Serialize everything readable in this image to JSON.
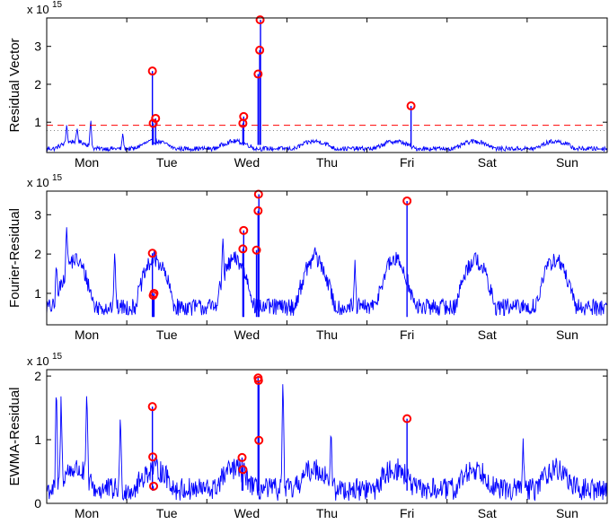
{
  "chart_data": [
    {
      "type": "line",
      "ylabel": "Residual Vector",
      "exponent_base": "x 10",
      "exponent_power": "15",
      "x_tick_labels": [
        "Mon",
        "Tue",
        "Wed",
        "Thu",
        "Fri",
        "Sat",
        "Sun"
      ],
      "x_range_days": [
        0,
        7
      ],
      "ylim": [
        0.2,
        3.75
      ],
      "y_ticks": [
        1,
        2,
        3
      ],
      "threshold": 0.92,
      "threshold_style": "dashed",
      "secondary_threshold": 0.78,
      "secondary_threshold_style": "dotted",
      "grid": false,
      "colors": {
        "line": "#0000ff",
        "anomaly": "#ff0000",
        "threshold": "#ff0000",
        "secondary": "#888888"
      },
      "baseline": {
        "level": 0.35,
        "amplitude": 0.12,
        "noise": 0.06
      },
      "spikes": [
        {
          "x": 0.55,
          "y": 1.12
        },
        {
          "x": 0.38,
          "y": 0.85
        },
        {
          "x": 0.95,
          "y": 0.72
        },
        {
          "x": 0.25,
          "y": 0.95
        }
      ],
      "anomalies": [
        {
          "x": 1.32,
          "y": 2.35
        },
        {
          "x": 1.33,
          "y": 0.97
        },
        {
          "x": 1.36,
          "y": 1.1
        },
        {
          "x": 2.45,
          "y": 0.97
        },
        {
          "x": 2.46,
          "y": 1.15
        },
        {
          "x": 2.64,
          "y": 2.27
        },
        {
          "x": 2.66,
          "y": 2.9
        },
        {
          "x": 2.665,
          "y": 3.7
        },
        {
          "x": 4.55,
          "y": 1.43
        }
      ]
    },
    {
      "type": "line",
      "ylabel": "Fourier-Residual",
      "exponent_base": "x 10",
      "exponent_power": "15",
      "x_tick_labels": [
        "Mon",
        "Tue",
        "Wed",
        "Thu",
        "Fri",
        "Sat",
        "Sun"
      ],
      "x_range_days": [
        0,
        7
      ],
      "ylim": [
        0.2,
        3.6
      ],
      "y_ticks": [
        1,
        2,
        3
      ],
      "grid": false,
      "colors": {
        "line": "#0000ff",
        "anomaly": "#ff0000"
      },
      "baseline": {
        "level": 0.95,
        "amplitude": 0.75,
        "noise": 0.22
      },
      "spikes": [
        {
          "x": 0.25,
          "y": 2.75
        },
        {
          "x": 0.12,
          "y": 1.85
        },
        {
          "x": 0.85,
          "y": 2.2
        },
        {
          "x": 2.2,
          "y": 2.45
        },
        {
          "x": 3.35,
          "y": 2.2
        },
        {
          "x": 3.85,
          "y": 1.85
        }
      ],
      "anomalies": [
        {
          "x": 1.32,
          "y": 2.02
        },
        {
          "x": 1.33,
          "y": 0.95
        },
        {
          "x": 1.34,
          "y": 1.0
        },
        {
          "x": 2.45,
          "y": 2.13
        },
        {
          "x": 2.46,
          "y": 2.6
        },
        {
          "x": 2.62,
          "y": 2.1
        },
        {
          "x": 2.64,
          "y": 3.1
        },
        {
          "x": 2.645,
          "y": 3.52
        },
        {
          "x": 4.5,
          "y": 3.35
        }
      ]
    },
    {
      "type": "line",
      "ylabel": "EWMA-Residual",
      "exponent_base": "x 10",
      "exponent_power": "15",
      "x_tick_labels": [
        "Mon",
        "Tue",
        "Wed",
        "Thu",
        "Fri",
        "Sat",
        "Sun"
      ],
      "x_range_days": [
        0,
        7
      ],
      "ylim": [
        0.0,
        2.1
      ],
      "y_ticks": [
        0,
        1,
        2
      ],
      "grid": false,
      "colors": {
        "line": "#0000ff",
        "anomaly": "#ff0000"
      },
      "baseline": {
        "level": 0.3,
        "amplitude": 0.2,
        "noise": 0.18
      },
      "spikes": [
        {
          "x": 0.12,
          "y": 1.95
        },
        {
          "x": 0.18,
          "y": 1.75
        },
        {
          "x": 0.5,
          "y": 1.85
        },
        {
          "x": 0.92,
          "y": 1.45
        },
        {
          "x": 2.95,
          "y": 2.1
        },
        {
          "x": 3.55,
          "y": 1.2
        },
        {
          "x": 5.95,
          "y": 1.02
        }
      ],
      "anomalies": [
        {
          "x": 1.32,
          "y": 1.52
        },
        {
          "x": 1.325,
          "y": 0.73
        },
        {
          "x": 1.335,
          "y": 0.27
        },
        {
          "x": 2.44,
          "y": 0.72
        },
        {
          "x": 2.45,
          "y": 0.53
        },
        {
          "x": 2.64,
          "y": 1.97
        },
        {
          "x": 2.645,
          "y": 1.93
        },
        {
          "x": 2.65,
          "y": 0.99
        },
        {
          "x": 4.5,
          "y": 1.33
        }
      ]
    }
  ]
}
